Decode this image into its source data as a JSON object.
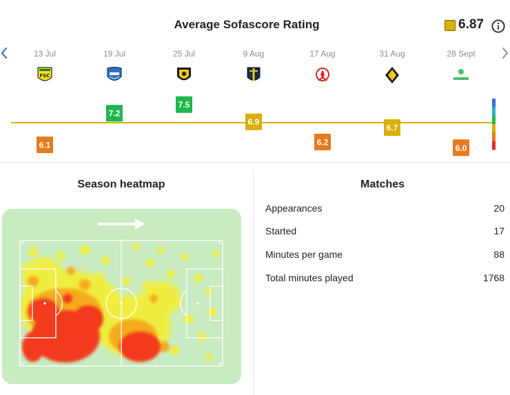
{
  "rating": {
    "title": "Average Sofascore Rating",
    "average": "6.87",
    "average_color": "#d9af00"
  },
  "matches_timeline": [
    {
      "date": "13 Jul",
      "crest": "fsc-crest-icon"
    },
    {
      "date": "19 Jul",
      "crest": "blue-shield-crest-icon"
    },
    {
      "date": "25 Jul",
      "crest": "yellow-black-crest-icon"
    },
    {
      "date": "9 Aug",
      "crest": "navy-yellow-crest-icon"
    },
    {
      "date": "17 Aug",
      "crest": "red-white-crest-icon"
    },
    {
      "date": "31 Aug",
      "crest": "yellow-diamond-crest-icon"
    },
    {
      "date": "28 Sept",
      "crest": "green-text-crest-icon"
    }
  ],
  "chart_data": {
    "type": "line",
    "x": [
      "13 Jul",
      "19 Jul",
      "25 Jul",
      "9 Aug",
      "17 Aug",
      "31 Aug",
      "28 Sept"
    ],
    "values": [
      6.1,
      7.2,
      7.5,
      6.9,
      6.2,
      6.7,
      6.0
    ],
    "labels": [
      "6.1",
      "7.2",
      "7.5",
      "6.9",
      "6.2",
      "6.7",
      "6.0"
    ],
    "average": 6.87,
    "ylim": [
      5.6,
      7.9
    ],
    "colors": {
      "high": "#1fb64e",
      "mid": "#d9af00",
      "low": "#e8791e",
      "line": "#d9af00"
    },
    "scale_colors": [
      "#3a6fd8",
      "#28b4c8",
      "#1fb64e",
      "#d9af00",
      "#e8791e",
      "#e02d2d"
    ]
  },
  "heatmap": {
    "title": "Season heatmap",
    "pitch_color": "#c8ebc2",
    "attack_direction": "right"
  },
  "matches": {
    "title": "Matches",
    "stats": [
      {
        "label": "Appearances",
        "value": "20"
      },
      {
        "label": "Started",
        "value": "17"
      },
      {
        "label": "Minutes per game",
        "value": "88"
      },
      {
        "label": "Total minutes played",
        "value": "1768"
      }
    ]
  }
}
